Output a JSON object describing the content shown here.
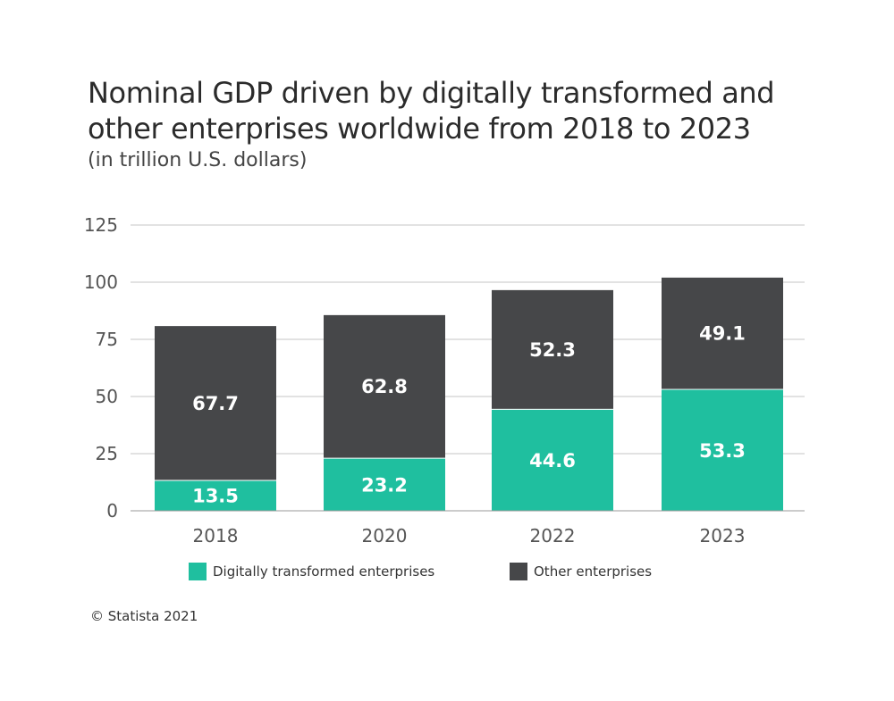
{
  "chart_data": {
    "type": "bar",
    "stacked": true,
    "title": "Nominal GDP driven by digitally transformed and other enterprises worldwide from 2018 to 2023",
    "subtitle": "(in trillion U.S. dollars)",
    "categories": [
      "2018",
      "2020",
      "2022",
      "2023"
    ],
    "series": [
      {
        "name": "Digitally transformed enterprises",
        "values": [
          13.5,
          23.2,
          44.6,
          53.3
        ],
        "color": "#1fbf9f"
      },
      {
        "name": "Other enterprises",
        "values": [
          67.7,
          62.8,
          52.3,
          49.1
        ],
        "color": "#464749"
      }
    ],
    "yticks": [
      "0",
      "25",
      "50",
      "75",
      "100",
      "125"
    ],
    "ylim": [
      0,
      125
    ],
    "grid": true,
    "legend_position": "bottom",
    "xlabel": "",
    "ylabel": ""
  },
  "source": "© Statista 2021"
}
